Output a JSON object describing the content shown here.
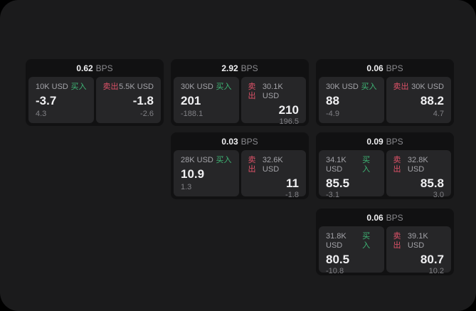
{
  "labels": {
    "bps_unit": "BPS",
    "buy": "买入",
    "sell": "卖出"
  },
  "colors": {
    "page_bg": "#000000",
    "container_bg": "#1b1b1c",
    "card_bg": "#111112",
    "panel_bg": "#262628",
    "buy_green": "#3eb575",
    "sell_red": "#dd5268"
  },
  "cards": [
    {
      "bps": "0.62",
      "buy": {
        "amount": "10K USD",
        "value": "-3.7",
        "sub": "4.3"
      },
      "sell": {
        "amount": "5.5K USD",
        "value": "-1.8",
        "sub": "-2.6"
      }
    },
    {
      "bps": "2.92",
      "buy": {
        "amount": "30K USD",
        "value": "201",
        "sub": "-188.1"
      },
      "sell": {
        "amount": "30.1K USD",
        "value": "210",
        "sub": "196.5"
      }
    },
    {
      "bps": "0.06",
      "buy": {
        "amount": "30K USD",
        "value": "88",
        "sub": "-4.9"
      },
      "sell": {
        "amount": "30K USD",
        "value": "88.2",
        "sub": "4.7"
      }
    },
    {
      "bps": "0.03",
      "buy": {
        "amount": "28K USD",
        "value": "10.9",
        "sub": "1.3"
      },
      "sell": {
        "amount": "32.6K USD",
        "value": "11",
        "sub": "-1.8"
      }
    },
    {
      "bps": "0.09",
      "buy": {
        "amount": "34.1K USD",
        "value": "85.5",
        "sub": "-3.1"
      },
      "sell": {
        "amount": "32.8K USD",
        "value": "85.8",
        "sub": "3.0"
      }
    },
    {
      "bps": "0.06",
      "buy": {
        "amount": "31.8K USD",
        "value": "80.5",
        "sub": "-10.8"
      },
      "sell": {
        "amount": "39.1K USD",
        "value": "80.7",
        "sub": "10.2"
      }
    }
  ]
}
